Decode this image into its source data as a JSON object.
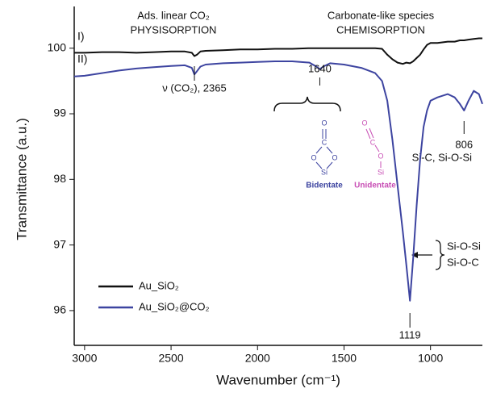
{
  "chart_data": {
    "type": "line",
    "x_label": "Wavenumber (cm⁻¹)",
    "y_label": "Transmittance (a.u.)",
    "xlim": [
      3060,
      700
    ],
    "ylim": [
      95.47,
      100.55
    ],
    "xticks": [
      3000,
      2500,
      2000,
      1500,
      1000
    ],
    "yticks": [
      96,
      97,
      98,
      99,
      100
    ],
    "legend": "lower left",
    "x": [
      3060,
      3000,
      2900,
      2800,
      2700,
      2600,
      2500,
      2420,
      2380,
      2365,
      2350,
      2330,
      2300,
      2200,
      2100,
      2000,
      1900,
      1800,
      1700,
      1660,
      1640,
      1620,
      1580,
      1500,
      1400,
      1320,
      1280,
      1250,
      1220,
      1190,
      1160,
      1140,
      1119,
      1100,
      1080,
      1060,
      1040,
      1020,
      1000,
      960,
      900,
      860,
      830,
      806,
      780,
      750,
      720,
      700
    ],
    "series": [
      {
        "name": "Au_SiO₂",
        "color": "#111111",
        "curve_label": "I)",
        "values": [
          99.93,
          99.93,
          99.94,
          99.94,
          99.93,
          99.94,
          99.95,
          99.95,
          99.93,
          99.88,
          99.9,
          99.95,
          99.96,
          99.97,
          99.98,
          99.98,
          99.99,
          99.99,
          100.0,
          100.0,
          100.0,
          100.0,
          100.0,
          100.0,
          100.0,
          100.0,
          99.99,
          99.9,
          99.83,
          99.78,
          99.76,
          99.78,
          99.77,
          99.8,
          99.85,
          99.9,
          99.98,
          100.05,
          100.08,
          100.08,
          100.1,
          100.1,
          100.12,
          100.12,
          100.13,
          100.14,
          100.15,
          100.15
        ]
      },
      {
        "name": "Au_SiO₂@CO₂",
        "color": "#3d44a0",
        "curve_label": "II)",
        "values": [
          99.57,
          99.58,
          99.62,
          99.66,
          99.69,
          99.71,
          99.73,
          99.74,
          99.7,
          99.6,
          99.65,
          99.72,
          99.75,
          99.77,
          99.78,
          99.79,
          99.8,
          99.8,
          99.78,
          99.72,
          99.68,
          99.72,
          99.77,
          99.75,
          99.7,
          99.62,
          99.5,
          99.2,
          98.6,
          97.9,
          97.2,
          96.7,
          96.15,
          96.8,
          97.6,
          98.3,
          98.8,
          99.05,
          99.2,
          99.25,
          99.3,
          99.25,
          99.15,
          99.05,
          99.2,
          99.35,
          99.3,
          99.15
        ]
      }
    ],
    "regions": [
      {
        "title": "Ads. linear CO₂",
        "subtitle": "PHYSISORPTION"
      },
      {
        "title": "Carbonate-like species",
        "subtitle": "CHEMISORPTION"
      }
    ],
    "peaks": [
      {
        "value": 2365,
        "label": "ν (CO₂), 2365"
      },
      1640,
      806,
      1119
    ],
    "peak_note": "Si-C, Si-O-Si",
    "bands": [
      "Si-O-Si",
      "Si-O-C"
    ],
    "structures": [
      {
        "name": "Bidentate",
        "color": "#3d44a0",
        "atoms": [
          "O",
          "C",
          "O",
          "O",
          "Si"
        ]
      },
      {
        "name": "Unidentate",
        "color": "#c84fb5",
        "atoms": [
          "O",
          "C",
          "O",
          "Si"
        ]
      }
    ]
  }
}
